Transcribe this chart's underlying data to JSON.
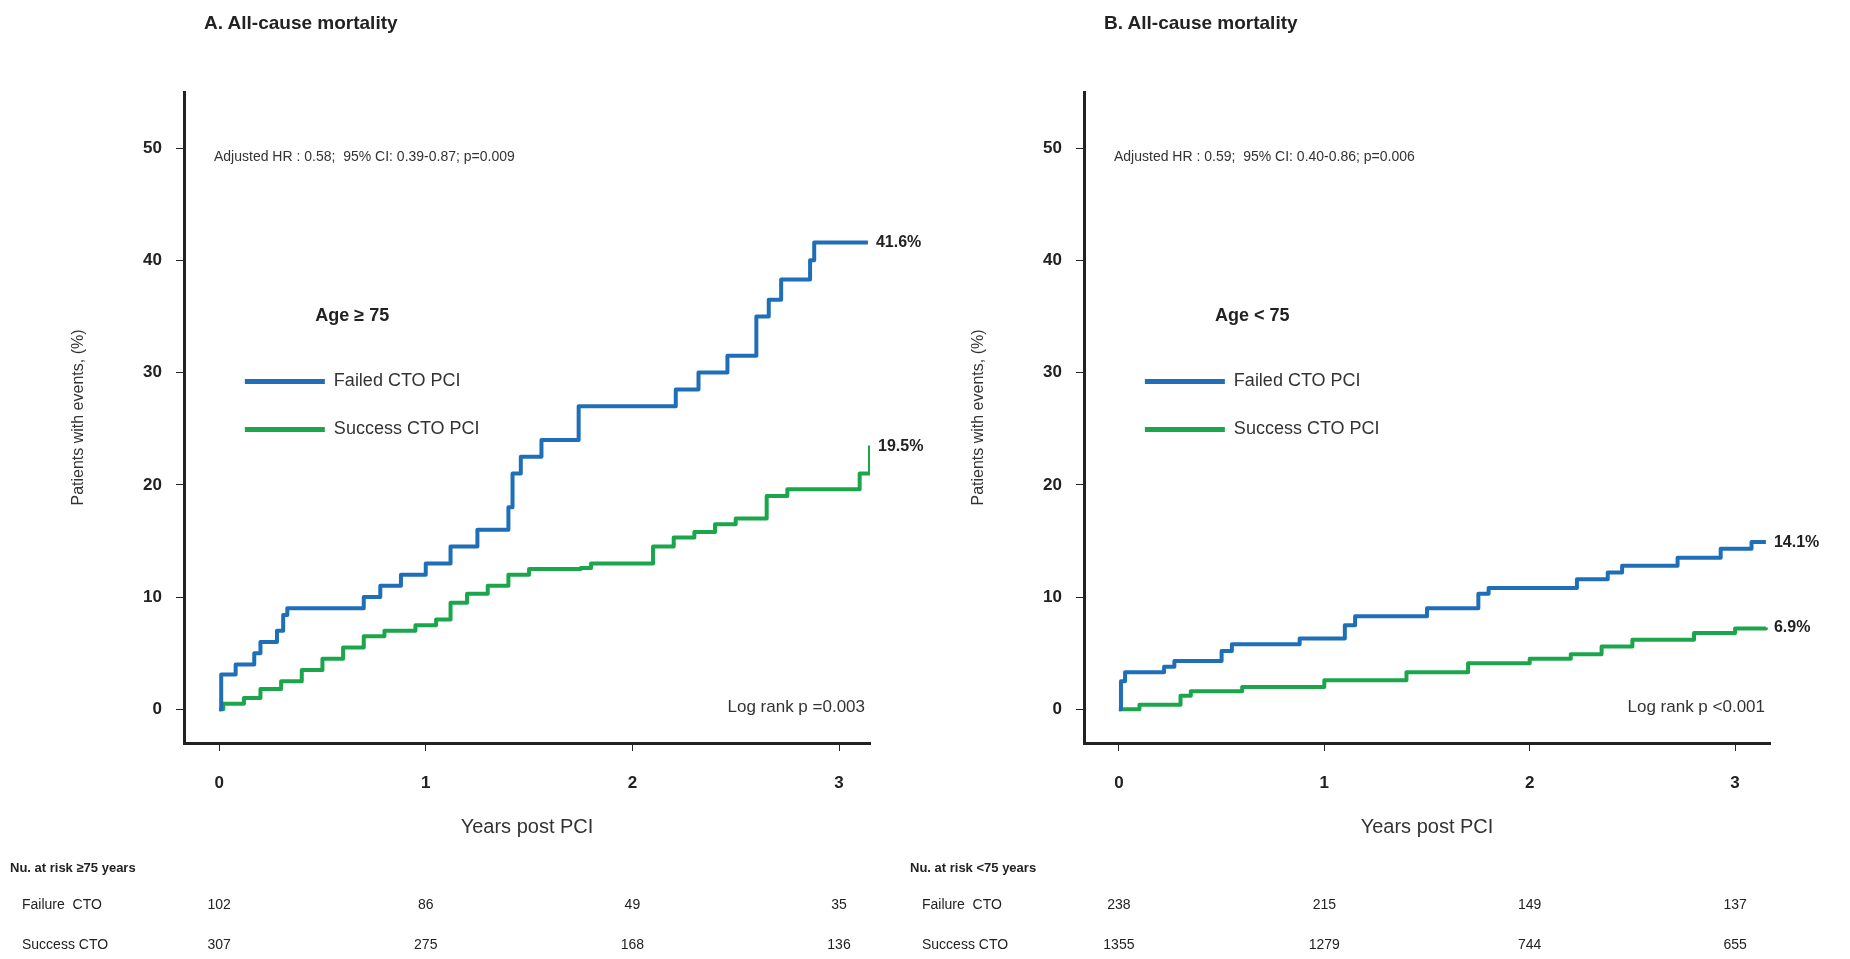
{
  "chart_data": [
    {
      "type": "step",
      "title": "A. All-cause mortality",
      "xlabel": "Years post PCI",
      "ylabel": "Patients with events, (%)",
      "legend_title": "Age ≥ 75",
      "legend": "left",
      "grid": false,
      "xlim": [
        -0.17,
        3.15
      ],
      "ylim": [
        -3,
        55
      ],
      "xticks": [
        0,
        1,
        2,
        3
      ],
      "yticks": [
        0,
        10,
        20,
        30,
        40,
        50
      ],
      "series": [
        {
          "name": "Failed CTO PCI",
          "color": "#1f6fb8",
          "x": [
            0,
            0.01,
            0.08,
            0.17,
            0.2,
            0.28,
            0.31,
            0.33,
            0.7,
            0.78,
            0.88,
            1.0,
            1.12,
            1.25,
            1.4,
            1.42,
            1.46,
            1.56,
            1.74,
            2.21,
            2.32,
            2.46,
            2.6,
            2.66,
            2.72,
            2.86,
            2.88,
            3.14
          ],
          "values": [
            0,
            3.1,
            4,
            5,
            6,
            7,
            8.4,
            9,
            10,
            11,
            12,
            13,
            14.5,
            16,
            18,
            21,
            22.5,
            24,
            27,
            28.5,
            30,
            31.5,
            35,
            36.5,
            38.3,
            40,
            41.6,
            41.6
          ]
        },
        {
          "name": "Success CTO PCI",
          "color": "#1ba64c",
          "x": [
            0,
            0.02,
            0.12,
            0.2,
            0.3,
            0.4,
            0.5,
            0.6,
            0.7,
            0.8,
            0.95,
            1.05,
            1.12,
            1.2,
            1.3,
            1.4,
            1.5,
            1.75,
            1.8,
            2.05,
            2.1,
            2.2,
            2.3,
            2.4,
            2.5,
            2.65,
            2.75,
            3.05,
            3.1,
            3.15
          ],
          "values": [
            0,
            0.5,
            1,
            1.8,
            2.5,
            3.5,
            4.5,
            5.5,
            6.5,
            7,
            7.5,
            8,
            9.5,
            10.3,
            11,
            12,
            12.5,
            12.6,
            13,
            13,
            14.5,
            15.3,
            15.8,
            16.5,
            17,
            19,
            19.6,
            19.6,
            21,
            23.5
          ]
        }
      ],
      "annotations": [
        "Adjusted HR : 0.58;  95% CI: 0.39-0.87; p=0.009",
        "Log rank p =0.003",
        "Nu. at risk ≥75 years",
        "Failure  CTO",
        "102",
        "86",
        "49",
        "35",
        "Success CTO",
        "307",
        "275",
        "168",
        "136",
        "41.6%",
        "19.5%"
      ]
    },
    {
      "type": "step",
      "title": "B. All-cause mortality",
      "xlabel": "Years post PCI",
      "ylabel": "Patients with events, (%)",
      "legend_title": "Age < 75",
      "legend": "left",
      "grid": false,
      "xlim": [
        -0.17,
        3.17
      ],
      "ylim": [
        -3,
        55
      ],
      "xticks": [
        0,
        1,
        2,
        3
      ],
      "yticks": [
        0,
        10,
        20,
        30,
        40,
        50
      ],
      "series": [
        {
          "name": "Failed CTO PCI",
          "color": "#1f6fb8",
          "x": [
            0,
            0.01,
            0.03,
            0.22,
            0.27,
            0.5,
            0.55,
            0.88,
            1.1,
            1.15,
            1.5,
            1.75,
            1.8,
            2.23,
            2.38,
            2.45,
            2.72,
            2.93,
            3.08,
            3.15
          ],
          "values": [
            0,
            2.5,
            3.3,
            3.8,
            4.3,
            5.2,
            5.8,
            6.3,
            7.5,
            8.3,
            9,
            10.3,
            10.8,
            11.6,
            12.2,
            12.8,
            13.5,
            14.3,
            14.9,
            14.9
          ]
        },
        {
          "name": "Success CTO PCI",
          "color": "#1ba64c",
          "x": [
            0,
            0.1,
            0.3,
            0.35,
            0.6,
            1.0,
            1.4,
            1.7,
            2.0,
            2.2,
            2.35,
            2.5,
            2.8,
            3.0,
            3.15
          ],
          "values": [
            0,
            0.4,
            1.2,
            1.6,
            2,
            2.6,
            3.3,
            4.1,
            4.5,
            4.9,
            5.6,
            6.2,
            6.8,
            7.2,
            7.3
          ]
        }
      ],
      "annotations": [
        "Adjusted HR : 0.59;  95% CI: 0.40-0.86; p=0.006",
        "Log rank p <0.001",
        "Nu. at risk <75 years",
        "Failure  CTO",
        "238",
        "215",
        "149",
        "137",
        "Success CTO",
        "1355",
        "1279",
        "744",
        "655",
        "14.1%",
        "6.9%"
      ]
    }
  ]
}
